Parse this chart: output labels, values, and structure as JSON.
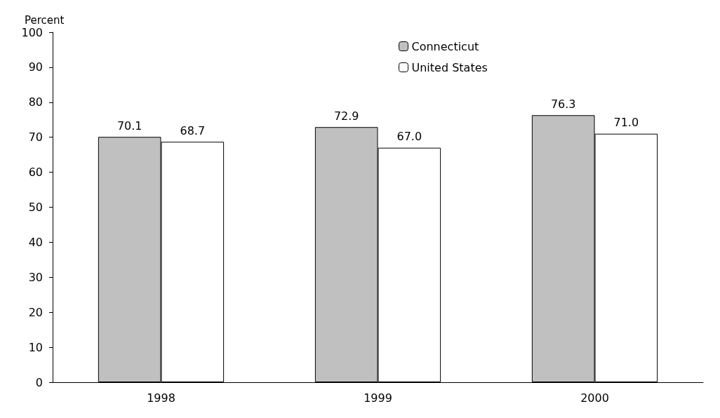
{
  "chart_data": {
    "type": "bar",
    "ylabel": "Percent",
    "categories": [
      "1998",
      "1999",
      "2000"
    ],
    "series": [
      {
        "name": "Connecticut",
        "color": "#c0c0c0",
        "values": [
          70.1,
          72.9,
          76.3
        ],
        "value_labels": [
          "70.1",
          "72.9",
          "76.3"
        ]
      },
      {
        "name": "United States",
        "color": "#ffffff",
        "values": [
          68.7,
          67.0,
          71.0
        ],
        "value_labels": [
          "68.7",
          "67.0",
          "71.0"
        ]
      }
    ],
    "ylim": [
      0,
      100
    ],
    "yticks": [
      0,
      10,
      20,
      30,
      40,
      50,
      60,
      70,
      80,
      90,
      100
    ],
    "grid": false,
    "legend": "top right"
  }
}
